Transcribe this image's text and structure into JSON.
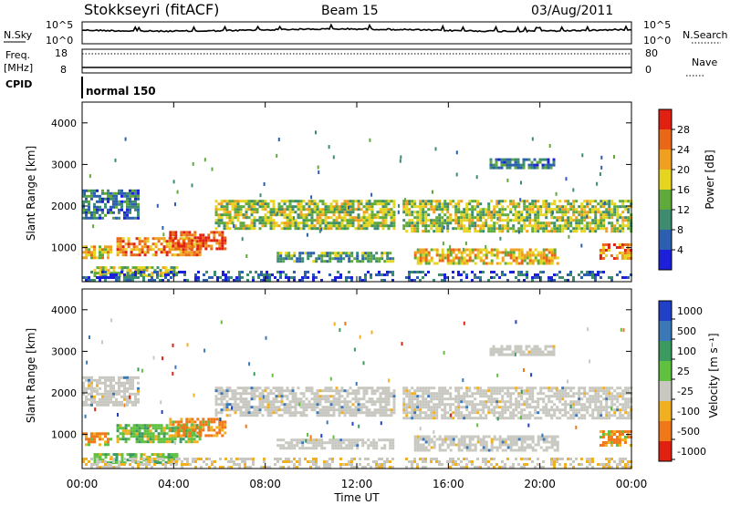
{
  "header": {
    "station": "Stokkseyri (fitACF)",
    "beam": "Beam 15",
    "date": "03/Aug/2011"
  },
  "noise_panel": {
    "left_label": "N.Sky",
    "right_label": "N.Search",
    "tick_top": "10^5",
    "tick_bottom": "10^0"
  },
  "freq_panel": {
    "left_label_1": "Freq.",
    "left_label_2": "[MHz]",
    "left_tick_top": "18",
    "left_tick_bottom": "8",
    "right_label": "Nave",
    "right_tick_top": "80",
    "right_tick_bottom": "0"
  },
  "cpid_panel": {
    "label": "CPID",
    "value": "normal 150"
  },
  "power_panel": {
    "ylabel": "Slant Range [km]",
    "yticks": [
      "1000",
      "2000",
      "3000",
      "4000"
    ],
    "colorbar_label": "Power [dB]",
    "colorbar_ticks": [
      "4",
      "8",
      "12",
      "16",
      "20",
      "24",
      "28"
    ],
    "colorbar_colors": [
      "#1c20d8",
      "#2c5fb0",
      "#3d8c70",
      "#5faa3a",
      "#e6d520",
      "#f0a020",
      "#e86818",
      "#e02010"
    ]
  },
  "velocity_panel": {
    "ylabel": "Slant Range [km]",
    "yticks": [
      "1000",
      "2000",
      "3000",
      "4000"
    ],
    "colorbar_label": "Velocity [m s⁻¹]",
    "colorbar_ticks": [
      "1000",
      "500",
      "100",
      "25",
      "-25",
      "-100",
      "-500",
      "-1000"
    ],
    "colorbar_colors": [
      "#2040c8",
      "#3a78b8",
      "#3a9a60",
      "#60c040",
      "#c8c8c0",
      "#f0b020",
      "#f07818",
      "#e02010"
    ]
  },
  "x_axis": {
    "label": "Time UT",
    "ticks": [
      "00:00",
      "04:00",
      "08:00",
      "12:00",
      "16:00",
      "20:00",
      "00:00"
    ]
  },
  "chart_data": [
    {
      "type": "heatmap",
      "title": "Power",
      "xlabel": "Time UT",
      "ylabel": "Slant Range [km]",
      "xlim": [
        0,
        24
      ],
      "ylim": [
        180,
        4500
      ],
      "clim": [
        0,
        32
      ],
      "regions": [
        {
          "t0": 0.0,
          "t1": 2.5,
          "r0": 1700,
          "r1": 2400,
          "value": 8
        },
        {
          "t0": 0.0,
          "t1": 1.2,
          "r0": 750,
          "r1": 1050,
          "value": 20
        },
        {
          "t0": 1.5,
          "t1": 5.2,
          "r0": 820,
          "r1": 1250,
          "value": 24
        },
        {
          "t0": 3.8,
          "t1": 6.3,
          "r0": 950,
          "r1": 1400,
          "value": 28
        },
        {
          "t0": 5.8,
          "t1": 13.6,
          "r0": 1450,
          "r1": 2150,
          "value": 16
        },
        {
          "t0": 8.5,
          "t1": 13.6,
          "r0": 650,
          "r1": 900,
          "value": 12
        },
        {
          "t0": 0.5,
          "t1": 4.2,
          "r0": 300,
          "r1": 550,
          "value": 16
        },
        {
          "t0": 14.0,
          "t1": 24.0,
          "r0": 1400,
          "r1": 2150,
          "value": 16
        },
        {
          "t0": 14.5,
          "t1": 20.8,
          "r0": 620,
          "r1": 980,
          "value": 20
        },
        {
          "t0": 17.8,
          "t1": 20.6,
          "r0": 2900,
          "r1": 3150,
          "value": 8
        },
        {
          "t0": 22.6,
          "t1": 24.0,
          "r0": 750,
          "r1": 1100,
          "value": 24
        }
      ]
    },
    {
      "type": "heatmap",
      "title": "Velocity",
      "xlabel": "Time UT",
      "ylabel": "Slant Range [km]",
      "xlim": [
        0,
        24
      ],
      "ylim": [
        180,
        4500
      ],
      "regions": [
        {
          "t0": 0.0,
          "t1": 2.5,
          "r0": 1700,
          "r1": 2400,
          "value": 0
        },
        {
          "t0": 0.0,
          "t1": 1.2,
          "r0": 750,
          "r1": 1050,
          "value": -300
        },
        {
          "t0": 1.5,
          "t1": 5.2,
          "r0": 820,
          "r1": 1250,
          "value": 150
        },
        {
          "t0": 3.8,
          "t1": 6.3,
          "r0": 950,
          "r1": 1400,
          "value": -400
        },
        {
          "t0": 5.8,
          "t1": 13.6,
          "r0": 1450,
          "r1": 2150,
          "value": 0
        },
        {
          "t0": 8.5,
          "t1": 13.6,
          "r0": 650,
          "r1": 900,
          "value": 0
        },
        {
          "t0": 0.5,
          "t1": 4.2,
          "r0": 300,
          "r1": 550,
          "value": 200
        },
        {
          "t0": 14.0,
          "t1": 24.0,
          "r0": 1400,
          "r1": 2150,
          "value": 0
        },
        {
          "t0": 14.5,
          "t1": 20.8,
          "r0": 620,
          "r1": 980,
          "value": 0
        },
        {
          "t0": 17.8,
          "t1": 20.6,
          "r0": 2900,
          "r1": 3150,
          "value": 0
        },
        {
          "t0": 22.6,
          "t1": 24.0,
          "r0": 750,
          "r1": 1100,
          "value": -200
        }
      ]
    }
  ]
}
